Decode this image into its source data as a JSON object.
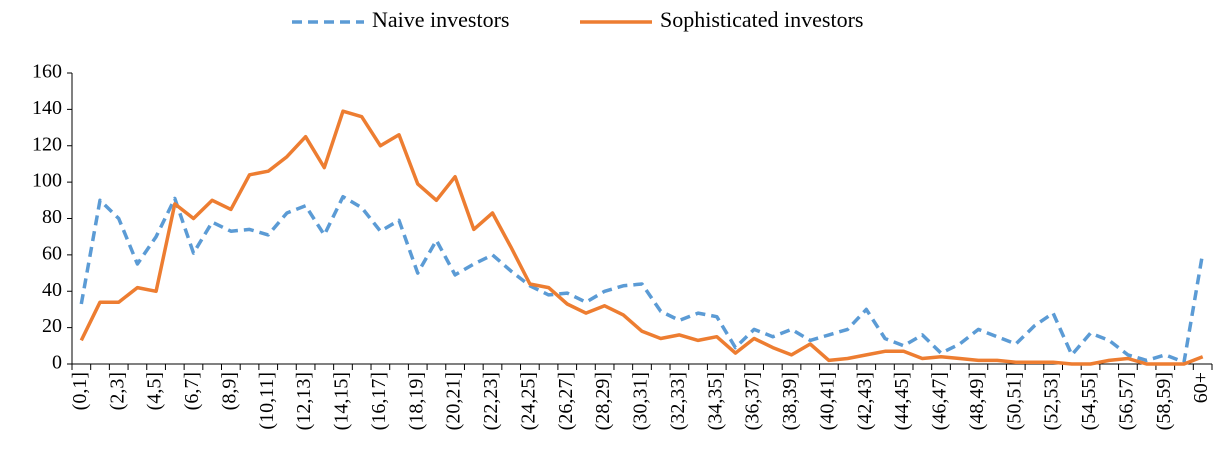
{
  "chart_data": {
    "type": "line",
    "categories": [
      "(0,1]",
      null,
      "(2,3]",
      null,
      "(4,5]",
      null,
      "(6,7]",
      null,
      "(8,9]",
      null,
      "(10,11]",
      null,
      "(12,13]",
      null,
      "(14,15]",
      null,
      "(16,17]",
      null,
      "(18,19]",
      null,
      "(20,21]",
      null,
      "(22,23]",
      null,
      "(24,25]",
      null,
      "(26,27]",
      null,
      "(28,29]",
      null,
      "(30,31]",
      null,
      "(32,33]",
      null,
      "(34,35]",
      null,
      "(36,37]",
      null,
      "(38,39]",
      null,
      "(40,41]",
      null,
      "(42,43]",
      null,
      "(44,45]",
      null,
      "(46,47]",
      null,
      "(48,49]",
      null,
      "(50,51]",
      null,
      "(52,53]",
      null,
      "(54,55]",
      null,
      "(56,57]",
      null,
      "(58,59]",
      null,
      "60+"
    ],
    "series": [
      {
        "name": "Naive investors",
        "color": "#5b9bd5",
        "dashed": true,
        "values": [
          33,
          90,
          80,
          55,
          70,
          91,
          61,
          78,
          73,
          74,
          71,
          83,
          87,
          71,
          92,
          86,
          73,
          79,
          50,
          68,
          49,
          55,
          60,
          51,
          43,
          38,
          39,
          34,
          40,
          43,
          44,
          29,
          24,
          28,
          26,
          9,
          19,
          15,
          19,
          13,
          16,
          19,
          30,
          14,
          10,
          16,
          6,
          11,
          19,
          15,
          11,
          21,
          28,
          5,
          17,
          13,
          5,
          2,
          5,
          1,
          61
        ]
      },
      {
        "name": "Sophisticated investors",
        "color": "#ed7d31",
        "dashed": false,
        "values": [
          13,
          34,
          34,
          42,
          40,
          88,
          80,
          90,
          85,
          104,
          106,
          114,
          125,
          108,
          139,
          136,
          120,
          126,
          99,
          90,
          103,
          74,
          83,
          64,
          44,
          42,
          33,
          28,
          32,
          27,
          18,
          14,
          16,
          13,
          15,
          6,
          14,
          9,
          5,
          11,
          2,
          3,
          5,
          7,
          7,
          3,
          4,
          3,
          2,
          2,
          1,
          1,
          1,
          0,
          0,
          2,
          3,
          0,
          0,
          0,
          4
        ]
      }
    ],
    "ylim": [
      0,
      160
    ],
    "yticks": [
      0,
      20,
      40,
      60,
      80,
      100,
      120,
      140,
      160
    ],
    "grid": false,
    "legend": "top"
  }
}
